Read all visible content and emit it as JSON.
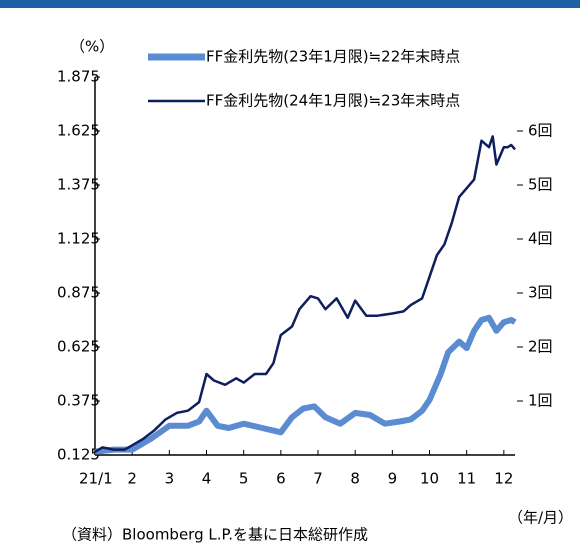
{
  "chart_data": {
    "type": "line",
    "unit_label": "（%）",
    "x_axis_label": "（年/月）",
    "source": "（資料）Bloomberg L.P.を基に日本総研作成",
    "xlim": [
      1,
      12.3
    ],
    "xticks": [
      {
        "value": 1,
        "label": "21/1"
      },
      2,
      3,
      4,
      5,
      6,
      7,
      8,
      9,
      10,
      11,
      12
    ],
    "ylim": [
      0.125,
      1.875
    ],
    "yticks": [
      0.125,
      0.375,
      0.625,
      0.875,
      1.125,
      1.375,
      1.625,
      1.875
    ],
    "y2lim": [
      0,
      7
    ],
    "y2ticks": [
      {
        "value": 1,
        "label": "1回"
      },
      {
        "value": 2,
        "label": "2回"
      },
      {
        "value": 3,
        "label": "3回"
      },
      {
        "value": 4,
        "label": "4回"
      },
      {
        "value": 5,
        "label": "5回"
      },
      {
        "value": 6,
        "label": "6回"
      }
    ],
    "series": [
      {
        "name": "FF金利先物(23年1月限)≒22年末時点",
        "color": "#5b8bd0",
        "x": [
          1.0,
          1.5,
          2.0,
          2.5,
          3.0,
          3.5,
          3.8,
          4.0,
          4.3,
          4.6,
          5.0,
          5.5,
          6.0,
          6.3,
          6.6,
          6.9,
          7.2,
          7.6,
          8.0,
          8.4,
          8.8,
          9.2,
          9.5,
          9.8,
          10.0,
          10.3,
          10.5,
          10.8,
          11.0,
          11.2,
          11.4,
          11.6,
          11.8,
          12.0,
          12.2,
          12.3
        ],
        "values": [
          0.14,
          0.15,
          0.15,
          0.2,
          0.26,
          0.26,
          0.28,
          0.33,
          0.26,
          0.25,
          0.27,
          0.25,
          0.23,
          0.3,
          0.34,
          0.35,
          0.3,
          0.27,
          0.32,
          0.31,
          0.27,
          0.28,
          0.29,
          0.33,
          0.38,
          0.5,
          0.6,
          0.65,
          0.62,
          0.7,
          0.75,
          0.76,
          0.7,
          0.74,
          0.75,
          0.74
        ]
      },
      {
        "name": "FF金利先物(24年1月限)≒23年末時点",
        "color": "#0d1f5c",
        "x": [
          1.0,
          1.2,
          1.5,
          1.8,
          2.0,
          2.3,
          2.6,
          2.9,
          3.2,
          3.5,
          3.8,
          4.0,
          4.2,
          4.5,
          4.8,
          5.0,
          5.3,
          5.6,
          5.8,
          6.0,
          6.3,
          6.5,
          6.8,
          7.0,
          7.2,
          7.5,
          7.8,
          8.0,
          8.3,
          8.6,
          9.0,
          9.3,
          9.5,
          9.8,
          10.0,
          10.2,
          10.4,
          10.6,
          10.8,
          11.0,
          11.2,
          11.4,
          11.6,
          11.7,
          11.8,
          12.0,
          12.1,
          12.2,
          12.3
        ],
        "values": [
          0.14,
          0.16,
          0.15,
          0.15,
          0.17,
          0.2,
          0.24,
          0.29,
          0.32,
          0.33,
          0.37,
          0.5,
          0.47,
          0.45,
          0.48,
          0.46,
          0.5,
          0.5,
          0.55,
          0.68,
          0.72,
          0.8,
          0.86,
          0.85,
          0.8,
          0.85,
          0.76,
          0.84,
          0.77,
          0.77,
          0.78,
          0.79,
          0.82,
          0.85,
          0.95,
          1.05,
          1.1,
          1.2,
          1.32,
          1.36,
          1.4,
          1.58,
          1.55,
          1.6,
          1.47,
          1.55,
          1.55,
          1.56,
          1.54
        ]
      }
    ]
  }
}
